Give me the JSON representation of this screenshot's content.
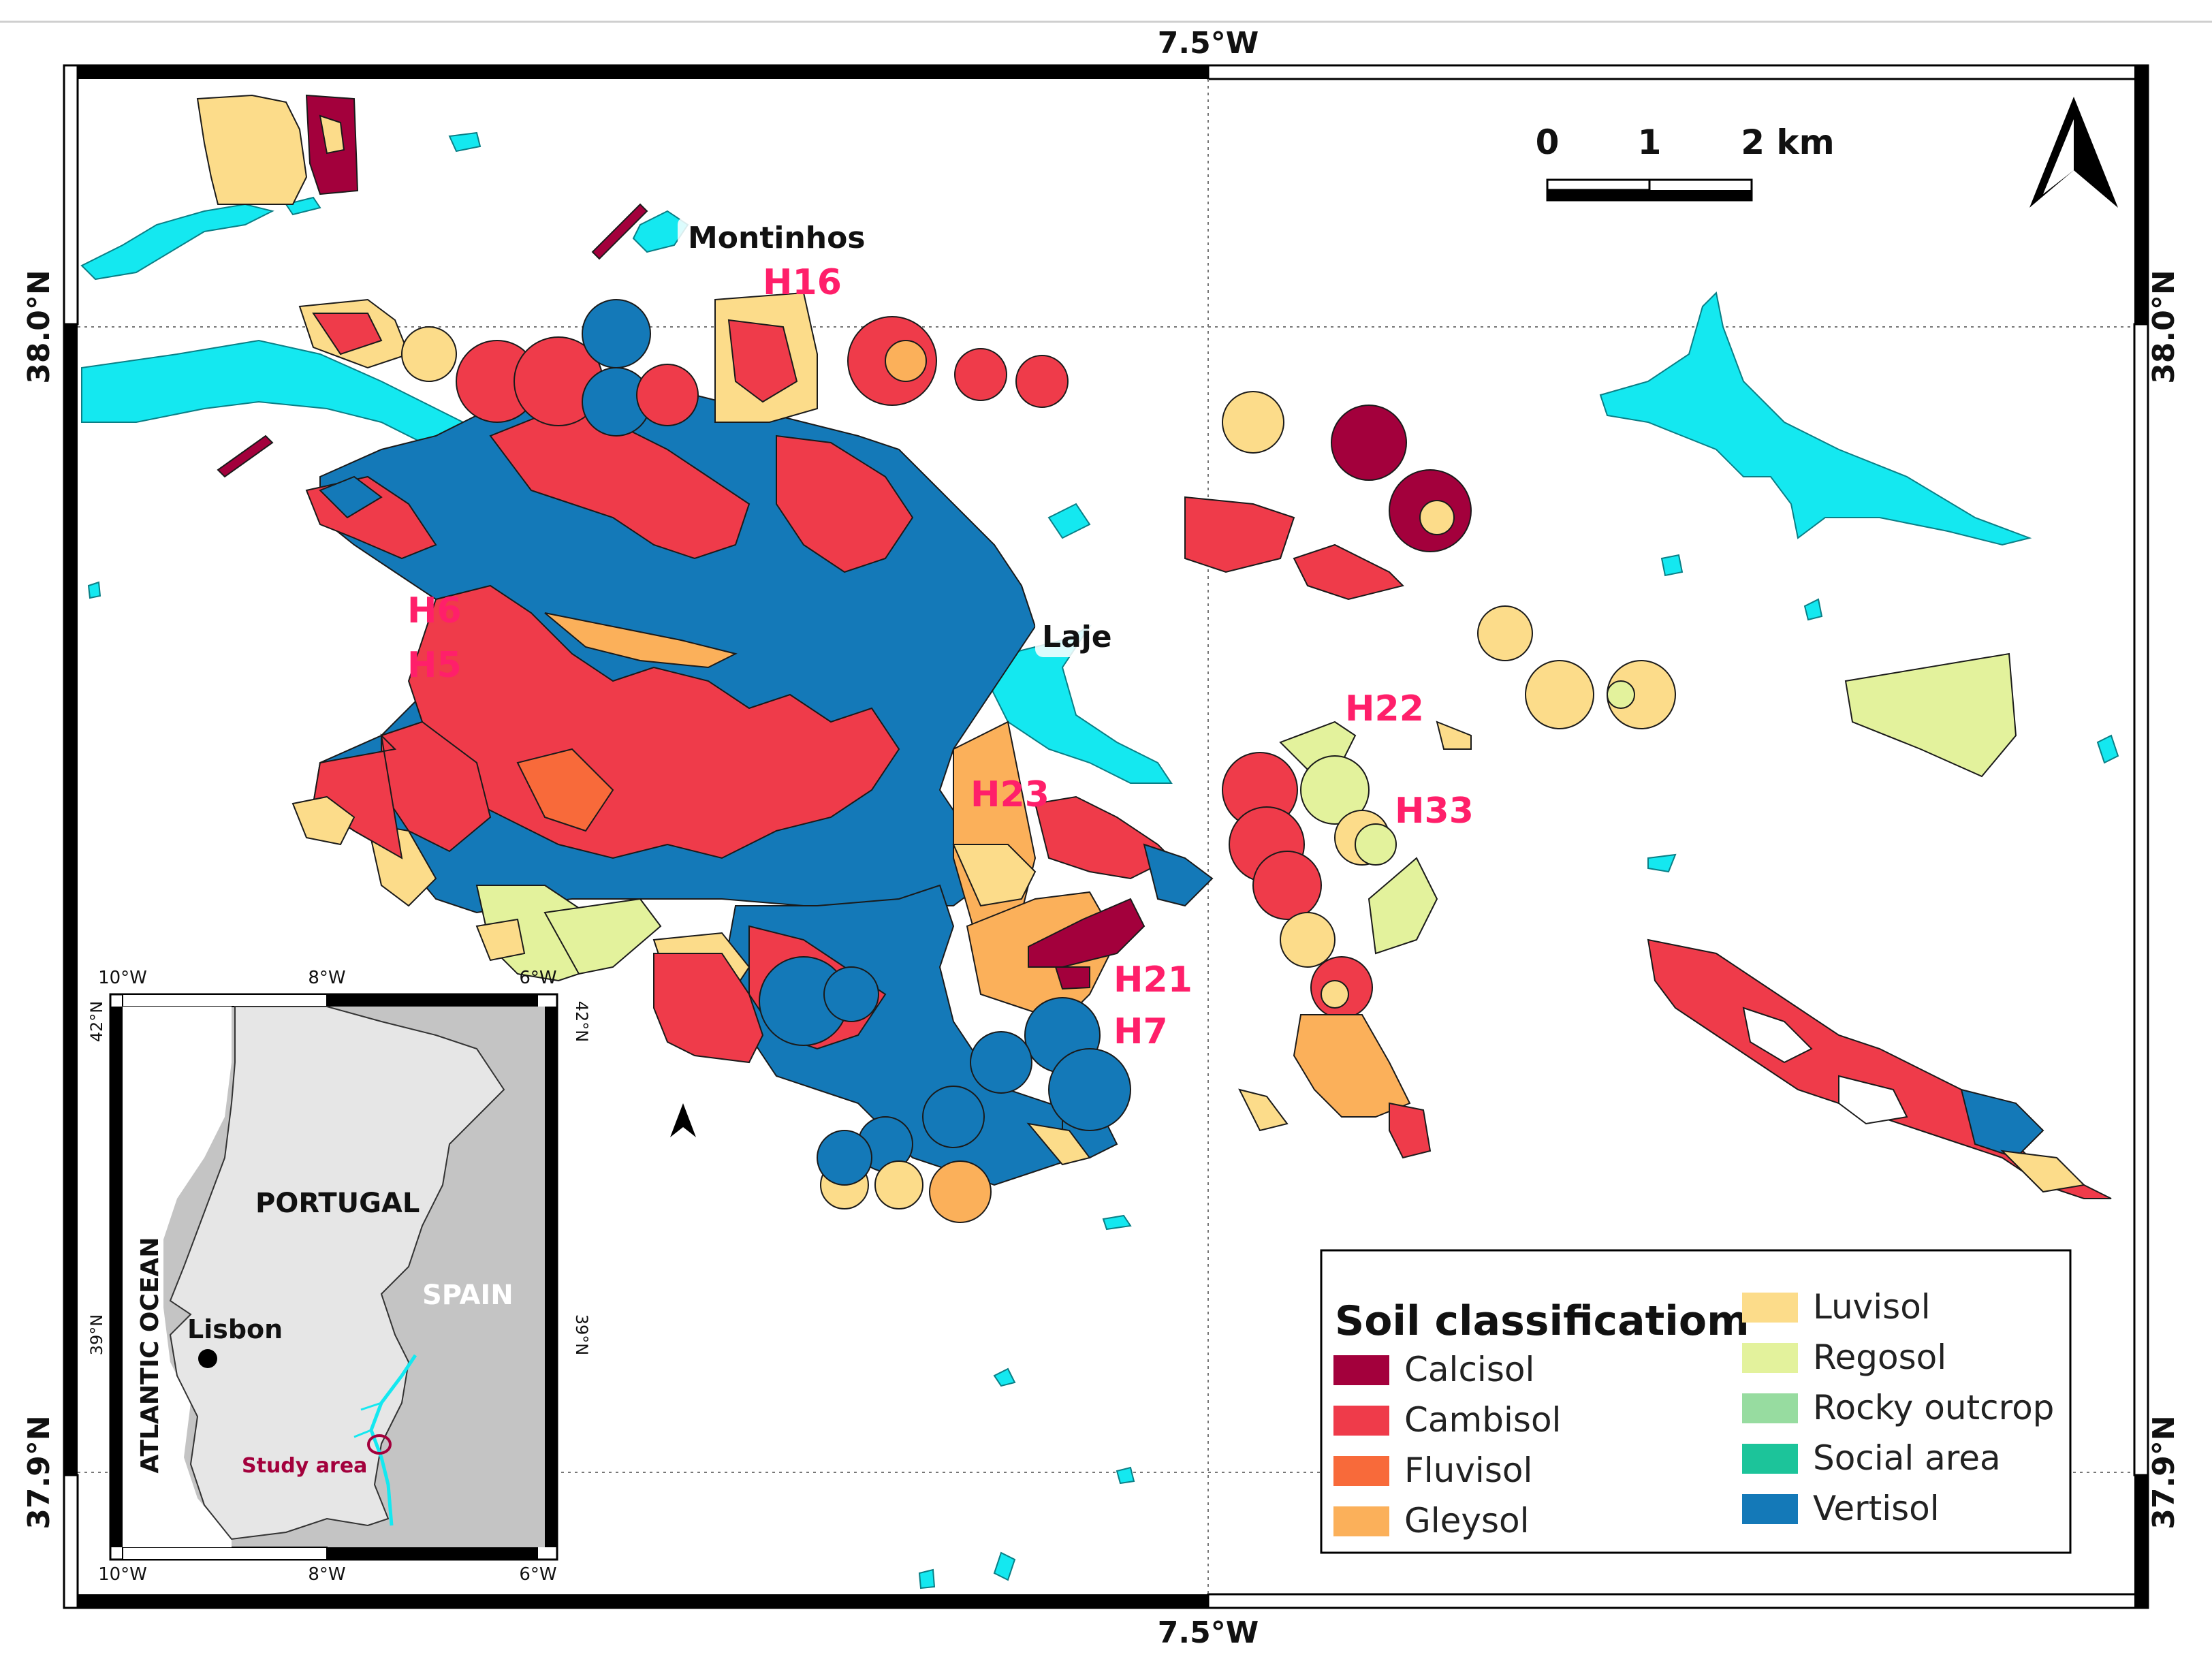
{
  "frame": {
    "top_label": "7.5°W",
    "bottom_label": "7.5°W",
    "left_upper": "38.0°N",
    "left_lower": "37.9°N",
    "right_upper": "38.0°N",
    "right_lower": "37.9°N"
  },
  "scale_bar": {
    "ticks": [
      "0",
      "1",
      "2 km"
    ]
  },
  "north_arrow": {
    "icon": "north-arrow-icon"
  },
  "places": {
    "montinhos": "Montinhos",
    "laje": "Laje"
  },
  "sites": {
    "h16": "H16",
    "h6": "H6",
    "h5": "H5",
    "h22": "H22",
    "h23": "H23",
    "h33": "H33",
    "h21": "H21",
    "h7": "H7"
  },
  "legend": {
    "title": "Soil classificatiom",
    "items": [
      {
        "label": "Calcisol",
        "color": "#a3003c"
      },
      {
        "label": "Cambisol",
        "color": "#ef3b4a"
      },
      {
        "label": "Fluvisol",
        "color": "#f86a3a"
      },
      {
        "label": "Gleysol",
        "color": "#fbb05a"
      },
      {
        "label": "Luvisol",
        "color": "#fcdc8a"
      },
      {
        "label": "Regosol",
        "color": "#e3f29c"
      },
      {
        "label": "Rocky outcrop",
        "color": "#97dca0"
      },
      {
        "label": "Social area",
        "color": "#1cc49a"
      },
      {
        "label": "Vertisol",
        "color": "#1479b8"
      }
    ]
  },
  "inset": {
    "top_ticks": [
      "10°W",
      "8°W",
      "6°W"
    ],
    "bottom_ticks": [
      "10°W",
      "8°W",
      "6°W"
    ],
    "left_ticks": [
      "42°N",
      "39°N"
    ],
    "right_ticks": [
      "42°N",
      "39°N"
    ],
    "portugal": "PORTUGAL",
    "spain": "SPAIN",
    "ocean": "ATLANTIC OCEAN",
    "lisbon": "Lisbon",
    "study_area": "Study area"
  },
  "colors": {
    "water": "#14e8f0",
    "calcisol": "#a3003c",
    "cambisol": "#ef3b4a",
    "fluvisol": "#f86a3a",
    "gleysol": "#fbb05a",
    "luvisol": "#fcdc8a",
    "regosol": "#e3f29c",
    "vertisol": "#1479b8",
    "site_label": "#ff1f6a"
  }
}
